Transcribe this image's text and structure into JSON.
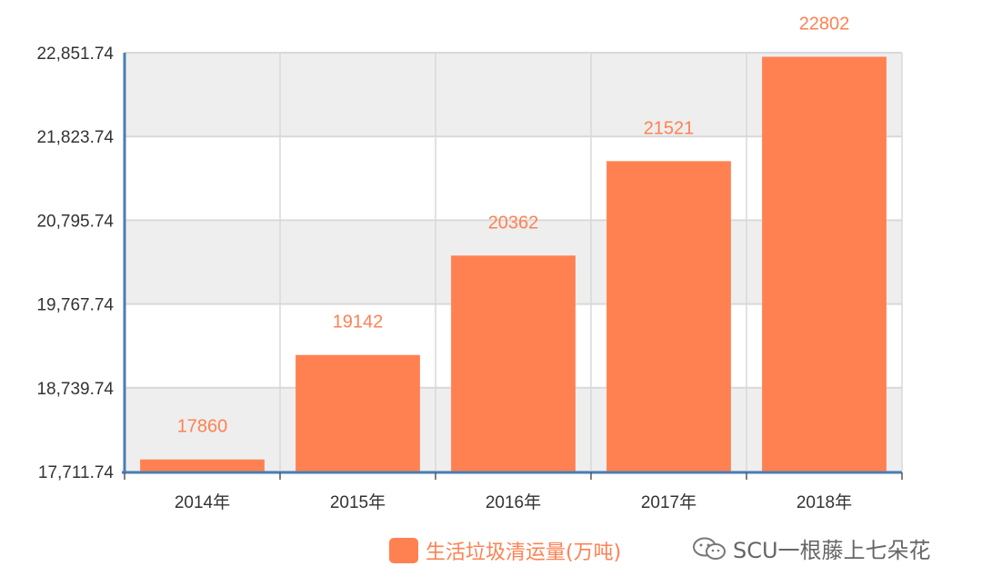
{
  "chart_data": {
    "type": "bar",
    "categories": [
      "2014年",
      "2015年",
      "2016年",
      "2017年",
      "2018年"
    ],
    "series": [
      {
        "name": "生活垃圾清运量(万吨)",
        "values": [
          17860,
          19142,
          20362,
          21521,
          22802
        ]
      }
    ],
    "data_labels": [
      "17860",
      "19142",
      "20362",
      "21521",
      "22802"
    ],
    "y_ticks": [
      17711.74,
      18739.74,
      19767.74,
      20795.74,
      21823.74,
      22851.74
    ],
    "y_tick_labels": [
      "17,711.74",
      "18,739.74",
      "19,767.74",
      "20,795.74",
      "21,823.74",
      "22,851.74"
    ],
    "ylim": [
      17711.74,
      22851.74
    ],
    "title": "",
    "xlabel": "",
    "ylabel": "",
    "grid": true,
    "legend_position": "bottom-center",
    "colors": {
      "bar": "#FF8152",
      "label": "#FF8152",
      "axis": "#4A7EB5",
      "grid": "#D9D9D9",
      "band": "#EEEEEE"
    }
  },
  "legend": {
    "label": "生活垃圾清运量(万吨)"
  },
  "watermark": {
    "text": "SCU一根藤上七朵花",
    "icon": "wechat-icon"
  }
}
